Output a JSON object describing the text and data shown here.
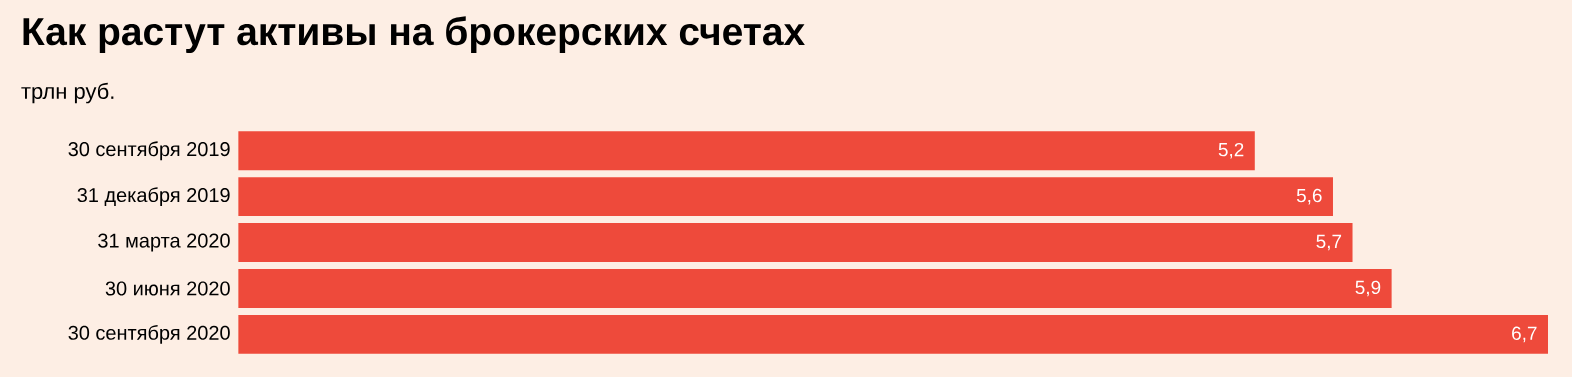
{
  "chart_data": {
    "type": "bar",
    "orientation": "horizontal",
    "title": "Как растут активы на брокерских счетах",
    "subtitle": "трлн руб.",
    "categories": [
      "30 сентября 2019",
      "31 декабря 2019",
      "31 марта 2020",
      "30 июня 2020",
      "30 сентября 2020"
    ],
    "values": [
      5.2,
      5.6,
      5.7,
      5.9,
      6.7
    ],
    "value_labels": [
      "5,2",
      "5,6",
      "5,7",
      "5,9",
      "6,7"
    ],
    "color": "#ee4a3b"
  }
}
